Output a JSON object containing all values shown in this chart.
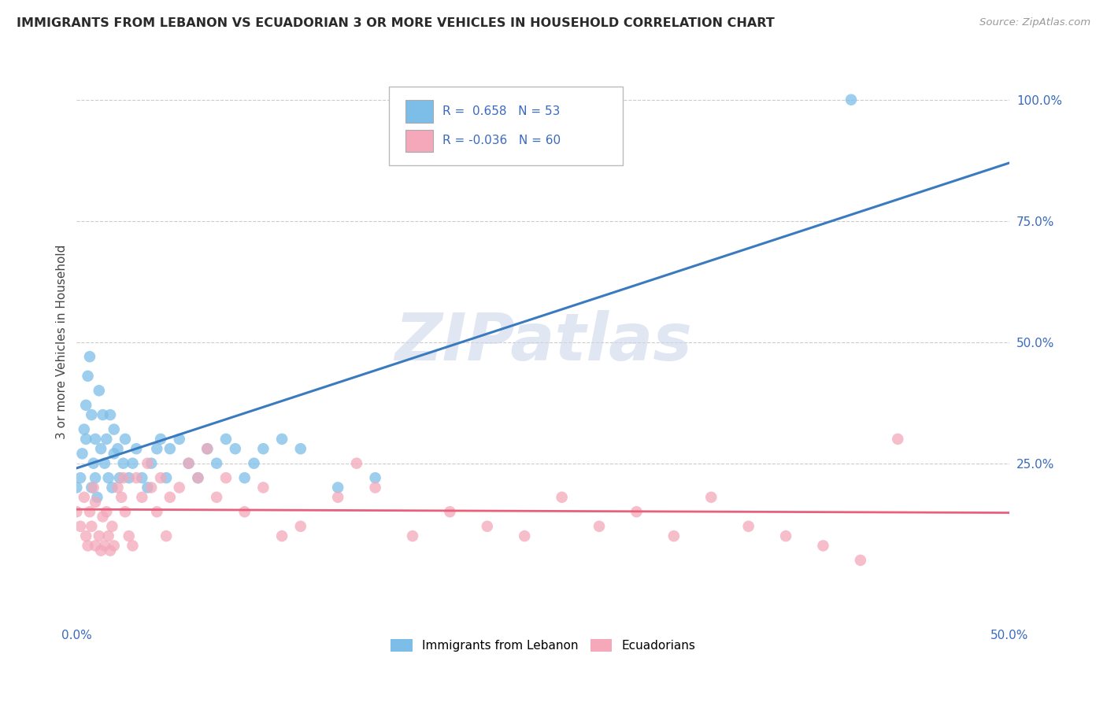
{
  "title": "IMMIGRANTS FROM LEBANON VS ECUADORIAN 3 OR MORE VEHICLES IN HOUSEHOLD CORRELATION CHART",
  "source": "Source: ZipAtlas.com",
  "ylabel": "3 or more Vehicles in Household",
  "xmin": 0.0,
  "xmax": 0.5,
  "ymin": -0.08,
  "ymax": 1.08,
  "legend1_label": "Immigrants from Lebanon",
  "legend2_label": "Ecuadorians",
  "R1": 0.658,
  "N1": 53,
  "R2": -0.036,
  "N2": 60,
  "blue_color": "#7dbee8",
  "blue_line_color": "#3a7abf",
  "pink_color": "#f4a8ba",
  "pink_line_color": "#e8607a",
  "watermark_color": "#cdd8ea",
  "title_color": "#2a2a2a",
  "label_color": "#3a6abf",
  "grid_color": "#cccccc",
  "blue_line_x0": 0.0,
  "blue_line_y0": 0.24,
  "blue_line_x1": 0.5,
  "blue_line_y1": 0.87,
  "pink_line_x0": 0.0,
  "pink_line_y0": 0.155,
  "pink_line_x1": 0.5,
  "pink_line_y1": 0.148,
  "blue_scatter_x": [
    0.0,
    0.002,
    0.003,
    0.004,
    0.005,
    0.005,
    0.006,
    0.007,
    0.008,
    0.008,
    0.009,
    0.01,
    0.01,
    0.011,
    0.012,
    0.013,
    0.014,
    0.015,
    0.016,
    0.017,
    0.018,
    0.019,
    0.02,
    0.02,
    0.022,
    0.023,
    0.025,
    0.026,
    0.028,
    0.03,
    0.032,
    0.035,
    0.038,
    0.04,
    0.043,
    0.045,
    0.048,
    0.05,
    0.055,
    0.06,
    0.065,
    0.07,
    0.075,
    0.08,
    0.085,
    0.09,
    0.095,
    0.1,
    0.11,
    0.12,
    0.14,
    0.16,
    0.415
  ],
  "blue_scatter_y": [
    0.2,
    0.22,
    0.27,
    0.32,
    0.3,
    0.37,
    0.43,
    0.47,
    0.2,
    0.35,
    0.25,
    0.22,
    0.3,
    0.18,
    0.4,
    0.28,
    0.35,
    0.25,
    0.3,
    0.22,
    0.35,
    0.2,
    0.27,
    0.32,
    0.28,
    0.22,
    0.25,
    0.3,
    0.22,
    0.25,
    0.28,
    0.22,
    0.2,
    0.25,
    0.28,
    0.3,
    0.22,
    0.28,
    0.3,
    0.25,
    0.22,
    0.28,
    0.25,
    0.3,
    0.28,
    0.22,
    0.25,
    0.28,
    0.3,
    0.28,
    0.2,
    0.22,
    1.0
  ],
  "pink_scatter_x": [
    0.0,
    0.002,
    0.004,
    0.005,
    0.006,
    0.007,
    0.008,
    0.009,
    0.01,
    0.01,
    0.012,
    0.013,
    0.014,
    0.015,
    0.016,
    0.017,
    0.018,
    0.019,
    0.02,
    0.022,
    0.024,
    0.025,
    0.026,
    0.028,
    0.03,
    0.032,
    0.035,
    0.038,
    0.04,
    0.043,
    0.045,
    0.048,
    0.05,
    0.055,
    0.06,
    0.065,
    0.07,
    0.075,
    0.08,
    0.09,
    0.1,
    0.11,
    0.12,
    0.14,
    0.15,
    0.16,
    0.18,
    0.2,
    0.22,
    0.24,
    0.26,
    0.28,
    0.3,
    0.32,
    0.34,
    0.36,
    0.38,
    0.4,
    0.42,
    0.44
  ],
  "pink_scatter_y": [
    0.15,
    0.12,
    0.18,
    0.1,
    0.08,
    0.15,
    0.12,
    0.2,
    0.08,
    0.17,
    0.1,
    0.07,
    0.14,
    0.08,
    0.15,
    0.1,
    0.07,
    0.12,
    0.08,
    0.2,
    0.18,
    0.22,
    0.15,
    0.1,
    0.08,
    0.22,
    0.18,
    0.25,
    0.2,
    0.15,
    0.22,
    0.1,
    0.18,
    0.2,
    0.25,
    0.22,
    0.28,
    0.18,
    0.22,
    0.15,
    0.2,
    0.1,
    0.12,
    0.18,
    0.25,
    0.2,
    0.1,
    0.15,
    0.12,
    0.1,
    0.18,
    0.12,
    0.15,
    0.1,
    0.18,
    0.12,
    0.1,
    0.08,
    0.05,
    0.3
  ]
}
